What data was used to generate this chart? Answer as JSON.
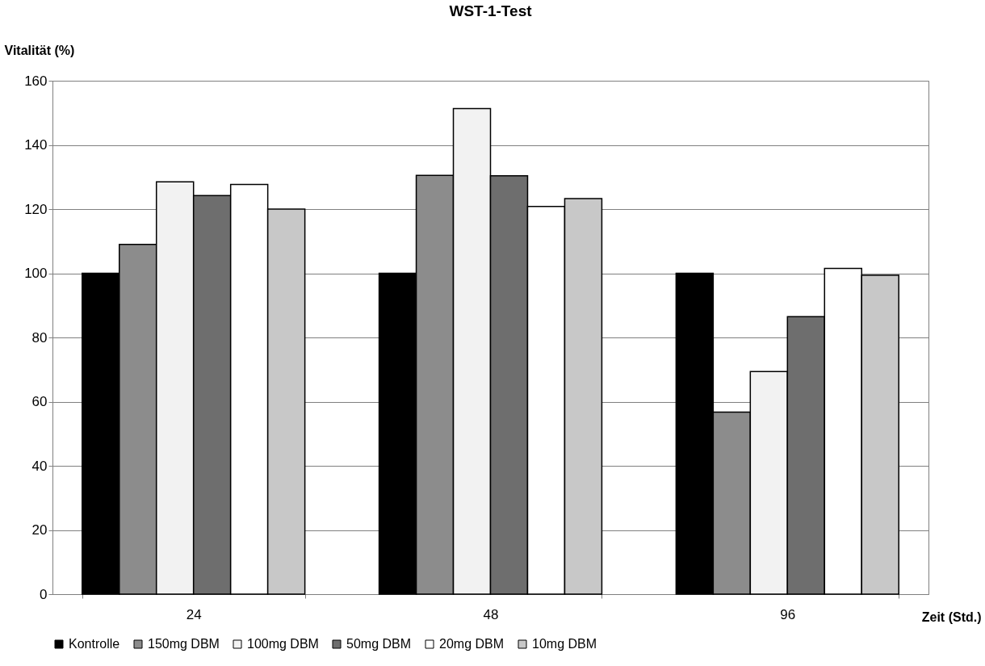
{
  "chart_data": {
    "type": "bar",
    "title": "WST-1-Test",
    "xlabel": "Zeit (Std.)",
    "ylabel": "Vitalität (%)",
    "categories": [
      "24",
      "48",
      "96"
    ],
    "series": [
      {
        "name": "Kontrolle",
        "color": "#000000",
        "values": [
          100,
          100,
          100
        ]
      },
      {
        "name": "150mg DBM",
        "color": "#8c8c8c",
        "values": [
          109,
          130.5,
          56.7
        ]
      },
      {
        "name": "100mg DBM",
        "color": "#f2f2f2",
        "values": [
          128.5,
          151.3,
          69.4
        ]
      },
      {
        "name": "50mg DBM",
        "color": "#6e6e6e",
        "values": [
          124.2,
          130.4,
          86.5
        ]
      },
      {
        "name": "20mg DBM",
        "color": "#ffffff",
        "values": [
          127.7,
          120.8,
          101.5
        ]
      },
      {
        "name": "10mg DBM",
        "color": "#c8c8c8",
        "values": [
          120,
          123.3,
          99.4
        ]
      }
    ],
    "ylim": [
      0,
      160
    ],
    "yticks": [
      0,
      20,
      40,
      60,
      80,
      100,
      120,
      140,
      160
    ],
    "grid": "y",
    "legend": "bottom"
  }
}
